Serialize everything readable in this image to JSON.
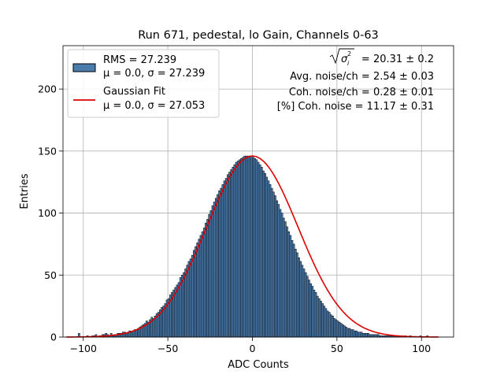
{
  "chart_data": {
    "type": "bar",
    "title": "Run 671, pedestal, lo Gain, Channels 0-63",
    "xlabel": "ADC Counts",
    "ylabel": "Entries",
    "xlim": [
      -112,
      119
    ],
    "ylim": [
      0,
      235
    ],
    "xticks": [
      -100,
      -50,
      0,
      50,
      100
    ],
    "yticks": [
      0,
      50,
      100,
      150,
      200
    ],
    "grid": true,
    "bin_width": 1,
    "bin_start": -103,
    "counts": [
      3,
      0,
      0,
      0,
      0,
      1,
      0,
      0,
      1,
      1,
      2,
      0,
      1,
      1,
      2,
      2,
      3,
      2,
      1,
      3,
      1,
      2,
      2,
      3,
      3,
      3,
      4,
      4,
      3,
      4,
      5,
      4,
      5,
      6,
      6,
      7,
      8,
      9,
      10,
      11,
      13,
      12,
      14,
      16,
      15,
      17,
      19,
      20,
      22,
      24,
      25,
      27,
      30,
      31,
      34,
      36,
      38,
      40,
      42,
      44,
      48,
      50,
      52,
      55,
      58,
      61,
      63,
      66,
      70,
      73,
      76,
      79,
      82,
      85,
      88,
      92,
      95,
      99,
      102,
      106,
      109,
      112,
      115,
      118,
      120,
      123,
      126,
      128,
      131,
      133,
      135,
      137,
      139,
      141,
      142,
      143,
      144,
      145,
      146,
      146,
      146,
      146,
      145,
      145,
      144,
      143,
      141,
      139,
      137,
      134,
      132,
      129,
      126,
      123,
      120,
      117,
      114,
      110,
      107,
      103,
      100,
      96,
      93,
      89,
      85,
      82,
      78,
      75,
      71,
      68,
      64,
      61,
      58,
      55,
      52,
      49,
      46,
      43,
      41,
      38,
      36,
      33,
      31,
      29,
      27,
      25,
      23,
      21,
      20,
      18,
      17,
      15,
      14,
      13,
      12,
      11,
      10,
      9,
      8,
      7,
      7,
      6,
      6,
      5,
      5,
      4,
      4,
      4,
      3,
      3,
      3,
      3,
      2,
      2,
      2,
      2,
      2,
      2,
      1,
      1,
      1,
      1,
      1,
      1,
      1,
      1,
      1,
      1,
      1,
      1,
      0,
      1,
      0,
      1,
      0,
      0,
      1,
      0,
      0,
      0,
      0,
      0,
      1,
      0,
      0,
      0,
      1
    ],
    "bar_color": "#4b7cae",
    "bar_edge_color": "#000000",
    "series": [
      {
        "name": "RMS = 27.239",
        "name_line2": "μ = 0.0, σ = 27.239",
        "kind": "histogram",
        "color": "#4b7cae"
      },
      {
        "name": "Gaussian Fit",
        "name_line2": "μ = 0.0, σ = 27.053",
        "kind": "line",
        "color": "#dd0000",
        "mu": 0.0,
        "sigma": 27.053,
        "amplitude": 146
      }
    ],
    "legend_position": "upper left",
    "annotations": {
      "line1_rest": " = 20.31 ± 0.2",
      "line2": "Avg. noise/ch = 2.54 ± 0.03",
      "line3": "Coh. noise/ch = 0.28 ± 0.01",
      "line4": "[%] Coh. noise = 11.17 ± 0.31"
    }
  }
}
